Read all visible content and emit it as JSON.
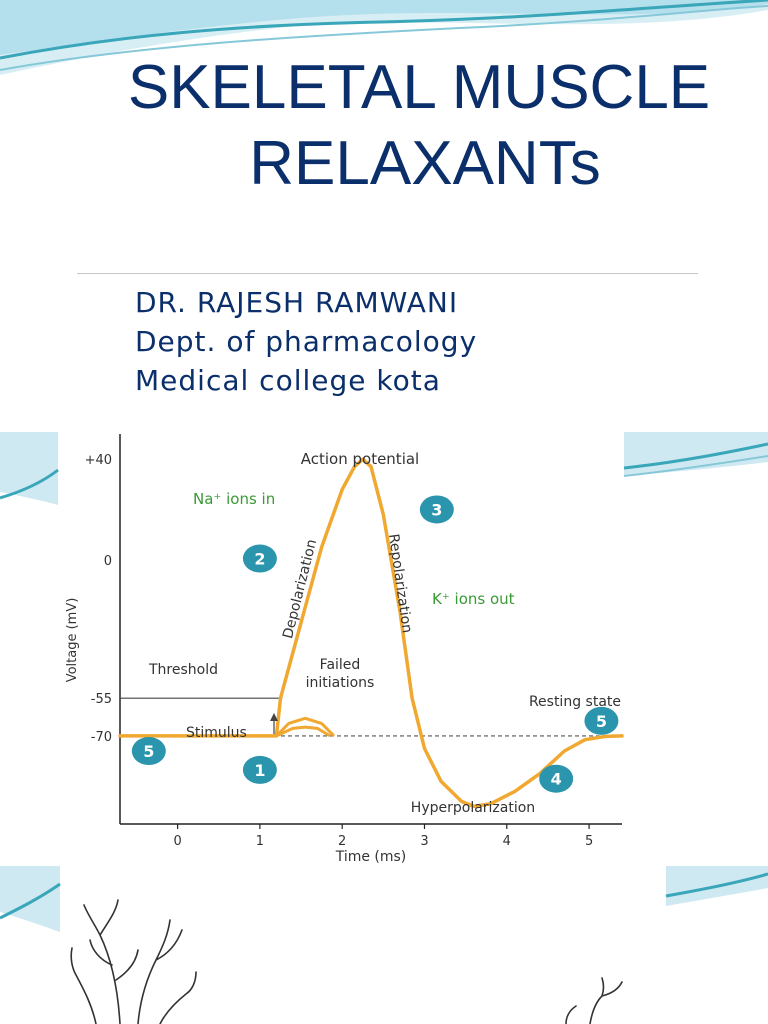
{
  "slide": {
    "title_line1": "SKELETAL MUSCLE",
    "title_line2": "RELAXANTs",
    "author_lines": [
      "DR. RAJESH RAMWANI",
      "Dept. of pharmacology",
      "Medical college kota"
    ],
    "colors": {
      "title": "#0b2f6b",
      "accent_teal": "#3aa6b9",
      "wave_light": "#cfe9f2"
    }
  },
  "chart_data": {
    "type": "line",
    "title": "Action potential",
    "xlabel": "Time (ms)",
    "ylabel": "Voltage (mV)",
    "x_ticks": [
      "0",
      "1",
      "2",
      "3",
      "4",
      "5"
    ],
    "y_ticks": [
      "+40",
      "0",
      "-55",
      "-70"
    ],
    "xlim": [
      -0.7,
      5.4
    ],
    "ylim": [
      -105,
      50
    ],
    "series": [
      {
        "name": "",
        "color": "#f0a830",
        "points": [
          [
            -0.7,
            -70
          ],
          [
            1.2,
            -70
          ],
          [
            1.25,
            -55
          ],
          [
            1.5,
            -25
          ],
          [
            1.75,
            5
          ],
          [
            2.0,
            28
          ],
          [
            2.15,
            37
          ],
          [
            2.25,
            40
          ],
          [
            2.35,
            37
          ],
          [
            2.5,
            18
          ],
          [
            2.7,
            -20
          ],
          [
            2.85,
            -55
          ],
          [
            3.0,
            -75
          ],
          [
            3.2,
            -88
          ],
          [
            3.45,
            -96
          ],
          [
            3.6,
            -98
          ],
          [
            3.8,
            -97
          ],
          [
            4.1,
            -92
          ],
          [
            4.4,
            -85
          ],
          [
            4.7,
            -76
          ],
          [
            4.95,
            -71.5
          ],
          [
            5.2,
            -70.2
          ],
          [
            5.4,
            -70
          ]
        ]
      }
    ],
    "failed_initiations": [
      [
        [
          1.2,
          -70
        ],
        [
          1.35,
          -65
        ],
        [
          1.55,
          -63
        ],
        [
          1.75,
          -65
        ],
        [
          1.9,
          -70
        ]
      ],
      [
        [
          1.2,
          -70
        ],
        [
          1.4,
          -67
        ],
        [
          1.55,
          -66.5
        ],
        [
          1.7,
          -67
        ],
        [
          1.85,
          -70
        ]
      ]
    ],
    "threshold": {
      "label": "Threshold",
      "value": -55
    },
    "resting": {
      "label": "Resting state",
      "value": -70
    },
    "annotations": {
      "na_in": "Na⁺ ions in",
      "k_out": "K⁺ ions out",
      "depolarization": "Depolarization",
      "repolarization": "Repolarization",
      "failed": [
        "Failed",
        "initiations"
      ],
      "stimulus": "Stimulus",
      "hyperpolarization": "Hyperpolarization"
    },
    "markers": [
      {
        "label": "1",
        "x": 1.0,
        "y": -83.5
      },
      {
        "label": "2",
        "x": 1.0,
        "y": 0.5
      },
      {
        "label": "3",
        "x": 3.15,
        "y": 20
      },
      {
        "label": "4",
        "x": 4.6,
        "y": -87
      },
      {
        "label": "5",
        "x": -0.35,
        "y": -76
      },
      {
        "label": "5",
        "x": 5.15,
        "y": -64
      }
    ],
    "colors": {
      "curve": "#f0a830",
      "marker": "#2a95ad",
      "annotation_green": "#3a9a35",
      "text": "#333333"
    }
  }
}
